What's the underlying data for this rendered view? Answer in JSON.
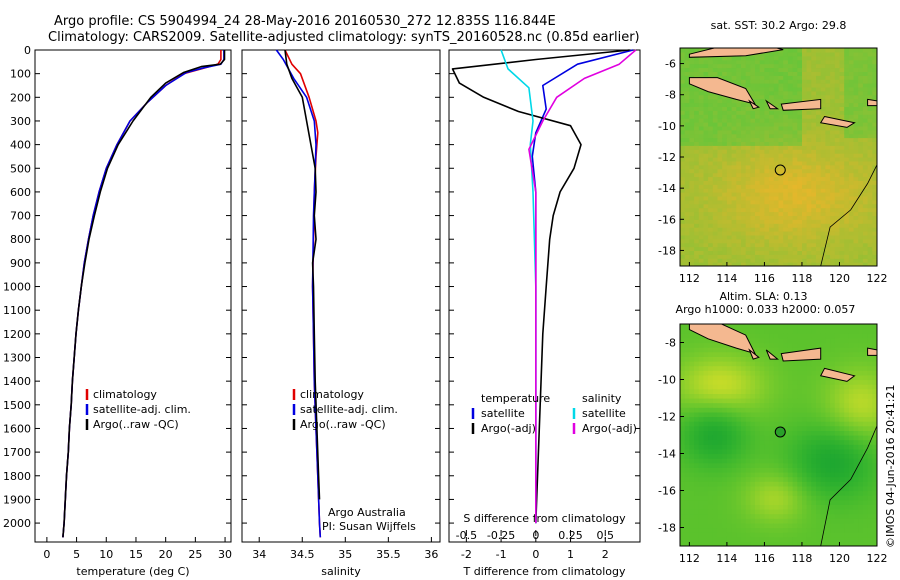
{
  "header": {
    "title_line1": "Argo profile: CS 5904994_24 28-May-2016 20160530_272 12.835S 116.844E",
    "title_line2": "Climatology: CARS2009. Satellite-adjusted climatology: synTS_20160528.nc (0.85d earlier)"
  },
  "stamp": "©IMOS 04-Jun-2016 20:41:21",
  "colors": {
    "climatology": "#e00000",
    "satellite": "#0000e0",
    "argo": "#000000",
    "argo_salt": "#e000e0",
    "sat_salt": "#00d8e8",
    "land": "#f4b890"
  },
  "credits": {
    "line1": "Argo Australia",
    "line2": "PI: Susan Wijffels"
  },
  "chart_data": [
    {
      "type": "line",
      "panel": "temperature",
      "xlabel": "temperature (deg C)",
      "ylabel": "",
      "xlim": [
        -2,
        31
      ],
      "ylim": [
        2080,
        0
      ],
      "xticks": [
        "0",
        "5",
        "10",
        "15",
        "20",
        "25",
        "30"
      ],
      "yticks": [
        "0",
        "100",
        "200",
        "300",
        "400",
        "500",
        "600",
        "700",
        "800",
        "900",
        "1000",
        "1100",
        "1200",
        "1300",
        "1400",
        "1500",
        "1600",
        "1700",
        "1800",
        "1900",
        "2000"
      ],
      "legend": [
        "climatology",
        "satellite-adj. clim.",
        "Argo(..raw -QC)"
      ],
      "series": [
        {
          "name": "climatology",
          "color": "#e00000",
          "points": [
            [
              29.3,
              0
            ],
            [
              29.3,
              40
            ],
            [
              28.8,
              60
            ],
            [
              26,
              80
            ],
            [
              23,
              100
            ],
            [
              20,
              150
            ],
            [
              17,
              220
            ],
            [
              14,
              300
            ],
            [
              11.8,
              400
            ],
            [
              10,
              500
            ],
            [
              8.8,
              600
            ],
            [
              7.8,
              700
            ],
            [
              7,
              800
            ],
            [
              6.3,
              900
            ],
            [
              5.8,
              1000
            ],
            [
              5.3,
              1100
            ],
            [
              4.9,
              1200
            ],
            [
              4.6,
              1300
            ],
            [
              4.3,
              1400
            ],
            [
              4.1,
              1500
            ],
            [
              3.8,
              1600
            ],
            [
              3.6,
              1700
            ],
            [
              3.3,
              1800
            ],
            [
              3.1,
              1900
            ],
            [
              2.9,
              2000
            ],
            [
              2.7,
              2060
            ]
          ]
        },
        {
          "name": "satellite-adj. clim.",
          "color": "#0000e0",
          "points": [
            [
              29.8,
              0
            ],
            [
              29.8,
              40
            ],
            [
              29.3,
              60
            ],
            [
              26.5,
              75
            ],
            [
              23.5,
              95
            ],
            [
              20,
              150
            ],
            [
              17,
              220
            ],
            [
              14,
              300
            ],
            [
              11.8,
              400
            ],
            [
              10,
              500
            ],
            [
              8.8,
              600
            ],
            [
              7.8,
              700
            ],
            [
              7,
              800
            ],
            [
              6.3,
              900
            ],
            [
              5.8,
              1000
            ],
            [
              5.3,
              1100
            ],
            [
              4.9,
              1200
            ],
            [
              4.6,
              1300
            ],
            [
              4.3,
              1400
            ],
            [
              4.1,
              1500
            ],
            [
              3.8,
              1600
            ],
            [
              3.6,
              1700
            ],
            [
              3.3,
              1800
            ],
            [
              3.1,
              1900
            ],
            [
              2.9,
              2000
            ],
            [
              2.7,
              2060
            ]
          ]
        },
        {
          "name": "Argo(..raw -QC)",
          "color": "#000000",
          "points": [
            [
              29.9,
              0
            ],
            [
              29.9,
              40
            ],
            [
              29.2,
              60
            ],
            [
              26,
              70
            ],
            [
              23,
              95
            ],
            [
              20,
              140
            ],
            [
              17.5,
              200
            ],
            [
              14.5,
              300
            ],
            [
              12,
              400
            ],
            [
              10.2,
              500
            ],
            [
              9,
              600
            ],
            [
              8,
              700
            ],
            [
              7.1,
              800
            ],
            [
              6.4,
              900
            ],
            [
              5.8,
              1000
            ],
            [
              5.3,
              1100
            ],
            [
              4.9,
              1200
            ],
            [
              4.6,
              1300
            ],
            [
              4.3,
              1400
            ],
            [
              4.1,
              1500
            ],
            [
              3.8,
              1600
            ],
            [
              3.6,
              1700
            ],
            [
              3.3,
              1800
            ],
            [
              3.1,
              1900
            ],
            [
              2.9,
              2000
            ],
            [
              2.7,
              2060
            ]
          ]
        }
      ]
    },
    {
      "type": "line",
      "panel": "salinity",
      "xlabel": "salinity",
      "ylabel": "",
      "xlim": [
        33.8,
        36.1
      ],
      "ylim": [
        2080,
        0
      ],
      "xticks": [
        "34",
        "34.5",
        "35",
        "35.5",
        "36"
      ],
      "legend": [
        "climatology",
        "satellite-adj. clim.",
        "Argo(..raw -QC)"
      ],
      "series": [
        {
          "name": "climatology",
          "color": "#e00000",
          "points": [
            [
              34.3,
              0
            ],
            [
              34.38,
              60
            ],
            [
              34.48,
              100
            ],
            [
              34.58,
              200
            ],
            [
              34.66,
              300
            ],
            [
              34.68,
              350
            ],
            [
              34.66,
              450
            ],
            [
              34.64,
              600
            ],
            [
              34.63,
              800
            ],
            [
              34.62,
              1000
            ],
            [
              34.63,
              1200
            ],
            [
              34.64,
              1400
            ],
            [
              34.66,
              1600
            ],
            [
              34.68,
              1800
            ],
            [
              34.7,
              2000
            ],
            [
              34.71,
              2060
            ]
          ]
        },
        {
          "name": "satellite-adj. clim.",
          "color": "#0000e0",
          "points": [
            [
              34.2,
              0
            ],
            [
              34.28,
              40
            ],
            [
              34.4,
              120
            ],
            [
              34.55,
              200
            ],
            [
              34.64,
              300
            ],
            [
              34.66,
              400
            ],
            [
              34.65,
              500
            ],
            [
              34.63,
              700
            ],
            [
              34.62,
              1000
            ],
            [
              34.63,
              1200
            ],
            [
              34.64,
              1400
            ],
            [
              34.66,
              1600
            ],
            [
              34.68,
              1800
            ],
            [
              34.7,
              2000
            ],
            [
              34.71,
              2060
            ]
          ]
        },
        {
          "name": "Argo(..raw -QC)",
          "color": "#000000",
          "points": [
            [
              34.3,
              0
            ],
            [
              34.32,
              60
            ],
            [
              34.38,
              120
            ],
            [
              34.5,
              200
            ],
            [
              34.55,
              300
            ],
            [
              34.6,
              400
            ],
            [
              34.65,
              500
            ],
            [
              34.66,
              600
            ],
            [
              34.64,
              700
            ],
            [
              34.66,
              800
            ],
            [
              34.62,
              900
            ],
            [
              34.63,
              1000
            ],
            [
              34.64,
              1200
            ],
            [
              34.65,
              1400
            ],
            [
              34.67,
              1600
            ],
            [
              34.69,
              1800
            ],
            [
              34.7,
              1900
            ]
          ]
        }
      ]
    },
    {
      "type": "line",
      "panel": "differences",
      "xlabel": "T difference from climatology",
      "xlabel_top": "S difference from climatology",
      "xlim": [
        -2.5,
        3
      ],
      "ylim": [
        2080,
        0
      ],
      "xticks": [
        "-2",
        "-1",
        "0",
        "1",
        "2"
      ],
      "xticks_top": [
        "-0.5",
        "-0.25",
        "0",
        "0.25",
        "0.5"
      ],
      "legend_groups": [
        {
          "title": "temperature",
          "items": [
            "satellite",
            "Argo(-adj)"
          ]
        },
        {
          "title": "salinity",
          "items": [
            "satellite",
            "Argo(-adj)"
          ]
        }
      ],
      "series": [
        {
          "name": "temperature satellite",
          "color": "#0000e0",
          "points": [
            [
              2.8,
              0
            ],
            [
              1.2,
              60
            ],
            [
              0.2,
              150
            ],
            [
              0.3,
              250
            ],
            [
              0,
              350
            ],
            [
              -0.1,
              450
            ],
            [
              0,
              600
            ],
            [
              0,
              800
            ],
            [
              0,
              1200
            ],
            [
              0,
              1600
            ],
            [
              0,
              2000
            ]
          ]
        },
        {
          "name": "temperature Argo(-adj)",
          "color": "#000000",
          "points": [
            [
              2.7,
              0
            ],
            [
              0,
              40
            ],
            [
              -2.4,
              80
            ],
            [
              -2.2,
              140
            ],
            [
              -1.5,
              200
            ],
            [
              -0.5,
              260
            ],
            [
              1,
              320
            ],
            [
              1.3,
              400
            ],
            [
              1.1,
              500
            ],
            [
              0.7,
              600
            ],
            [
              0.5,
              700
            ],
            [
              0.4,
              800
            ],
            [
              0.3,
              1000
            ],
            [
              0.2,
              1200
            ],
            [
              0.1,
              1600
            ],
            [
              0,
              2000
            ]
          ]
        },
        {
          "name": "salinity satellite",
          "color": "#00d8e8",
          "points": [
            [
              -0.25,
              0
            ],
            [
              -0.2,
              80
            ],
            [
              -0.05,
              160
            ],
            [
              -0.02,
              300
            ],
            [
              -0.04,
              400
            ],
            [
              -0.02,
              600
            ],
            [
              0,
              1000
            ],
            [
              0,
              1400
            ],
            [
              0,
              2000
            ]
          ]
        },
        {
          "name": "salinity Argo(-adj)",
          "color": "#e000e0",
          "points": [
            [
              0.72,
              0
            ],
            [
              0.6,
              60
            ],
            [
              0.35,
              120
            ],
            [
              0.15,
              200
            ],
            [
              0.05,
              300
            ],
            [
              -0.05,
              420
            ],
            [
              0,
              600
            ],
            [
              0,
              800
            ],
            [
              0,
              1200
            ],
            [
              0,
              2000
            ]
          ]
        }
      ]
    },
    {
      "type": "heatmap",
      "panel": "sst_map",
      "title": "sat. SST: 30.2 Argo: 29.8",
      "xlim": [
        111.5,
        122
      ],
      "ylim": [
        -19,
        -5
      ],
      "xticks": [
        "112",
        "114",
        "116",
        "118",
        "120",
        "122"
      ],
      "yticks": [
        "-6",
        "-8",
        "-10",
        "-12",
        "-14",
        "-16",
        "-18"
      ],
      "marker": {
        "lon": 116.844,
        "lat": -12.835
      }
    },
    {
      "type": "heatmap",
      "panel": "sla_map",
      "title_line1": "Altim. SLA: 0.13",
      "title_line2": "Argo h1000: 0.033 h2000: 0.057",
      "xlim": [
        111.5,
        122
      ],
      "ylim": [
        -19,
        -7
      ],
      "xticks": [
        "112",
        "114",
        "116",
        "118",
        "120",
        "122"
      ],
      "yticks": [
        "-8",
        "-10",
        "-12",
        "-14",
        "-16",
        "-18"
      ],
      "marker": {
        "lon": 116.844,
        "lat": -12.835
      }
    }
  ]
}
